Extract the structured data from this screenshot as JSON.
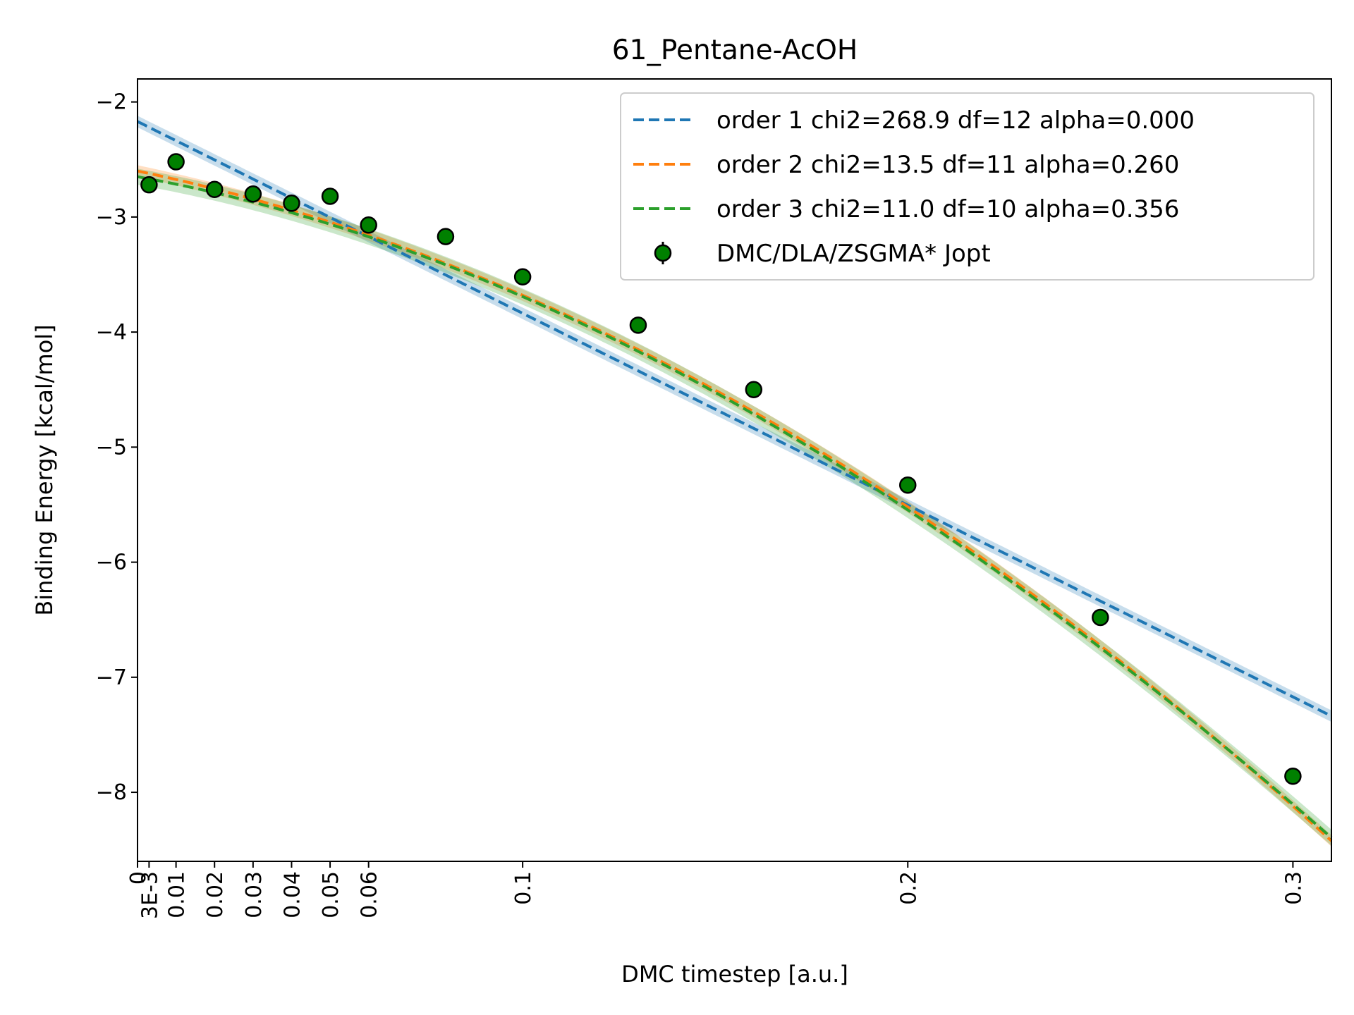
{
  "chart_data": {
    "type": "line",
    "title": "61_Pentane-AcOH",
    "xlabel": "DMC timestep [a.u.]",
    "ylabel": "Binding Energy [kcal/mol]",
    "xlim": [
      0,
      0.31
    ],
    "ylim": [
      -8.6,
      -1.8
    ],
    "x_ticks": [
      {
        "value": 0,
        "label": "0"
      },
      {
        "value": 0.003,
        "label": "3E-3"
      },
      {
        "value": 0.01,
        "label": "0.01"
      },
      {
        "value": 0.02,
        "label": "0.02"
      },
      {
        "value": 0.03,
        "label": "0.03"
      },
      {
        "value": 0.04,
        "label": "0.04"
      },
      {
        "value": 0.05,
        "label": "0.05"
      },
      {
        "value": 0.06,
        "label": "0.06"
      },
      {
        "value": 0.1,
        "label": "0.1"
      },
      {
        "value": 0.2,
        "label": "0.2"
      },
      {
        "value": 0.3,
        "label": "0.3"
      }
    ],
    "y_ticks": [
      {
        "value": -2,
        "label": "−2"
      },
      {
        "value": -3,
        "label": "−3"
      },
      {
        "value": -4,
        "label": "−4"
      },
      {
        "value": -5,
        "label": "−5"
      },
      {
        "value": -6,
        "label": "−6"
      },
      {
        "value": -7,
        "label": "−7"
      },
      {
        "value": -8,
        "label": "−8"
      }
    ],
    "grid": false,
    "legend_position": "top-right",
    "fits": [
      {
        "name": "order 1 chi2=268.9 df=12 alpha=0.000",
        "color": "#1f77b4",
        "coeffs": [
          -2.17,
          -16.67
        ],
        "band": 0.05
      },
      {
        "name": "order 2 chi2=13.5 df=11 alpha=0.260",
        "color": "#ff7f0e",
        "coeffs": [
          -2.6,
          -7.0,
          -38.0
        ],
        "band": 0.05
      },
      {
        "name": "order 3 chi2=11.0 df=10 alpha=0.356",
        "color": "#2ca02c",
        "coeffs": [
          -2.65,
          -6.0,
          -46.0,
          18.0
        ],
        "band": 0.07
      }
    ],
    "series": [
      {
        "name": "DMC/DLA/ZSGMA* Jopt",
        "color": "#008000",
        "x": [
          0.003,
          0.01,
          0.02,
          0.03,
          0.04,
          0.05,
          0.06,
          0.08,
          0.1,
          0.13,
          0.16,
          0.2,
          0.25,
          0.3
        ],
        "y": [
          -2.72,
          -2.52,
          -2.76,
          -2.8,
          -2.88,
          -2.82,
          -3.07,
          -3.17,
          -3.52,
          -3.94,
          -4.5,
          -5.33,
          -6.48,
          -7.86
        ],
        "yerr": [
          0.02,
          0.02,
          0.02,
          0.02,
          0.02,
          0.02,
          0.02,
          0.02,
          0.02,
          0.02,
          0.02,
          0.02,
          0.02,
          0.02
        ]
      }
    ]
  }
}
